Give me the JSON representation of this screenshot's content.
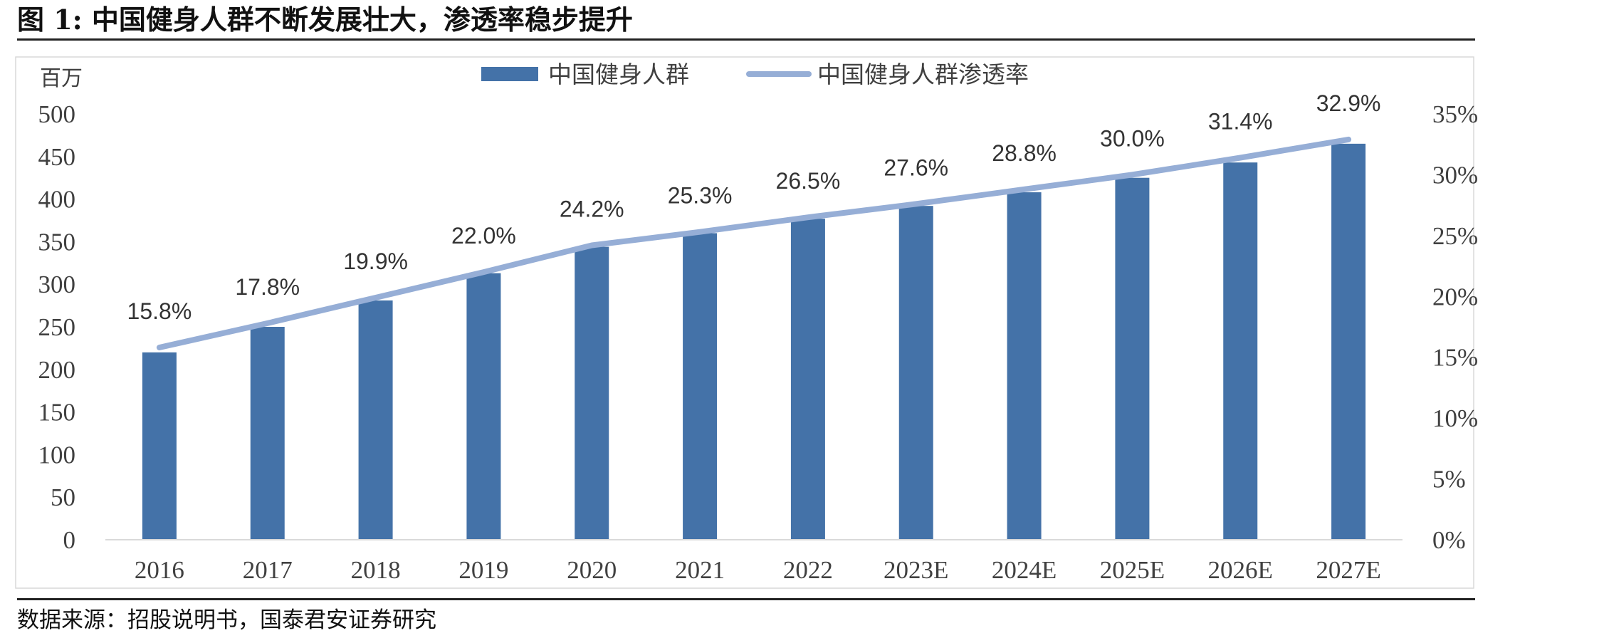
{
  "figure": {
    "title": "图 1: 中国健身人群不断发展壮大，渗透率稳步提升",
    "source": "数据来源：招股说明书，国泰君安证券研究"
  },
  "chart_data": {
    "type": "bar",
    "categories": [
      "2016",
      "2017",
      "2018",
      "2019",
      "2020",
      "2021",
      "2022",
      "2023E",
      "2024E",
      "2025E",
      "2026E",
      "2027E"
    ],
    "series": [
      {
        "name": "中国健身人群",
        "type": "bar",
        "axis": "left",
        "color": "#4472A8",
        "values": [
          220,
          250,
          281,
          313,
          344,
          360,
          377,
          392,
          408,
          425,
          443,
          465
        ]
      },
      {
        "name": "中国健身人群渗透率",
        "type": "line",
        "axis": "right",
        "color": "#96AED6",
        "values": [
          15.8,
          17.8,
          19.9,
          22.0,
          24.2,
          25.3,
          26.5,
          27.6,
          28.8,
          30.0,
          31.4,
          32.9
        ],
        "labels": [
          "15.8%",
          "17.8%",
          "19.9%",
          "22.0%",
          "24.2%",
          "25.3%",
          "26.5%",
          "27.6%",
          "28.8%",
          "30.0%",
          "31.4%",
          "32.9%"
        ]
      }
    ],
    "y_left": {
      "unit": "百万",
      "ylim": [
        0,
        500
      ],
      "ticks": [
        0,
        50,
        100,
        150,
        200,
        250,
        300,
        350,
        400,
        450,
        500
      ]
    },
    "y_right": {
      "ylim": [
        0,
        35
      ],
      "ticks": [
        0,
        5,
        10,
        15,
        20,
        25,
        30,
        35
      ],
      "tick_labels": [
        "0%",
        "5%",
        "10%",
        "15%",
        "20%",
        "25%",
        "30%",
        "35%"
      ]
    },
    "grid": false,
    "legend": "top-center"
  }
}
